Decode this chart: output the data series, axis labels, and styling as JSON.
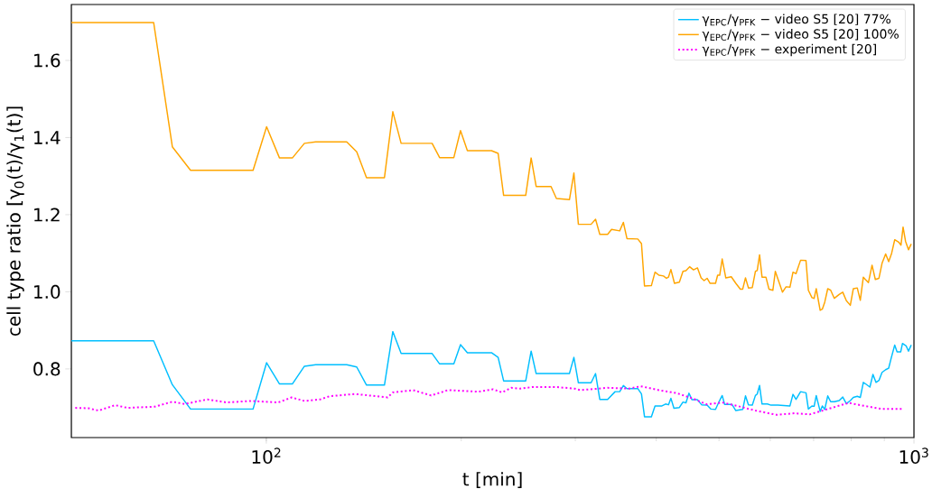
{
  "chart_data": {
    "type": "line",
    "xlabel": "t [min]",
    "ylabel": "cell type ratio [γ$_{0}$(t)/γ$_{1}$(t)]",
    "log": "x",
    "legend": "top right",
    "marker": "none",
    "xlim": [
      50,
      1000
    ],
    "ylim": [
      0.622,
      1.745
    ],
    "xticks": [
      {
        "value": 100,
        "label": "10$^{2}$"
      },
      {
        "value": 1000,
        "label": "10$^{3}$"
      }
    ],
    "yticks": [
      {
        "value": 0.8,
        "label": "0.8"
      },
      {
        "value": 1.0,
        "label": "1.0"
      },
      {
        "value": 1.2,
        "label": "1.2"
      },
      {
        "value": 1.4,
        "label": "1.4"
      },
      {
        "value": 1.6,
        "label": "1.6"
      }
    ],
    "series": [
      {
        "name": "γ$_{EPC}$/γ$_{PFK}$ − video S5 [20] 77%",
        "color": "#00bfff",
        "line_style": "solid",
        "x": [
          50,
          67.0,
          71.6,
          76.4,
          95.4,
          100.1,
          104.8,
          109.7,
          114.5,
          119.2,
          133.1,
          137.9,
          142.8,
          152.2,
          156.8,
          161.5,
          180.3,
          185.2,
          194.8,
          199.5,
          204.4,
          222.7,
          228.0,
          232.5,
          251.5,
          256.4,
          261.0,
          275.2,
          293.8,
          298.5,
          303.3,
          317.3,
          322.4,
          327.3,
          336.5,
          345.6,
          351.3,
          355.9,
          360.5,
          374.6,
          379.6,
          383.7,
          393.2,
          398.3,
          408.2,
          413.5,
          417.8,
          421.4,
          426.0,
          434.3,
          439.9,
          444.6,
          449.4,
          454.3,
          463.2,
          470.1,
          479.3,
          485.6,
          493.9,
          500.4,
          505.7,
          510.2,
          523.5,
          530.8,
          544.0,
          549.4,
          555.2,
          562.9,
          569.1,
          572.8,
          577.6,
          582.7,
          593.9,
          601.6,
          616.6,
          643.5,
          650.5,
          657.6,
          668.3,
          681.3,
          687.1,
          695.9,
          701.3,
          706.6,
          716.5,
          722.0,
          728.2,
          736.1,
          743.9,
          753.5,
          766.6,
          776.5,
          786.5,
          797.6,
          806.1,
          817.5,
          826.3,
          835.3,
          844.0,
          855.1,
          864.4,
          873.7,
          883.0,
          892.8,
          904.3,
          914.1,
          922.0,
          933.9,
          941.7,
          954.0,
          960.1,
          972.5,
          980.8,
          990.4
        ],
        "values": [
          0.873,
          0.873,
          0.759,
          0.696,
          0.696,
          0.816,
          0.761,
          0.761,
          0.807,
          0.811,
          0.811,
          0.805,
          0.758,
          0.758,
          0.897,
          0.84,
          0.84,
          0.813,
          0.813,
          0.863,
          0.842,
          0.842,
          0.83,
          0.769,
          0.769,
          0.846,
          0.788,
          0.788,
          0.788,
          0.83,
          0.764,
          0.764,
          0.788,
          0.721,
          0.721,
          0.741,
          0.741,
          0.757,
          0.749,
          0.749,
          0.735,
          0.676,
          0.676,
          0.704,
          0.704,
          0.709,
          0.707,
          0.724,
          0.698,
          0.7,
          0.714,
          0.712,
          0.737,
          0.72,
          0.72,
          0.707,
          0.706,
          0.696,
          0.695,
          0.716,
          0.731,
          0.708,
          0.708,
          0.692,
          0.695,
          0.73,
          0.707,
          0.706,
          0.731,
          0.735,
          0.757,
          0.709,
          0.709,
          0.706,
          0.706,
          0.704,
          0.734,
          0.721,
          0.741,
          0.738,
          0.696,
          0.704,
          0.703,
          0.731,
          0.69,
          0.704,
          0.695,
          0.73,
          0.715,
          0.715,
          0.718,
          0.727,
          0.71,
          0.718,
          0.726,
          0.729,
          0.726,
          0.765,
          0.76,
          0.753,
          0.786,
          0.765,
          0.77,
          0.791,
          0.798,
          0.802,
          0.827,
          0.862,
          0.844,
          0.844,
          0.866,
          0.86,
          0.846,
          0.862
        ]
      },
      {
        "name": "γ$_{EPC}$/γ$_{PFK}$ − video S5 [20] 100%",
        "color": "#ffa500",
        "line_style": "solid",
        "x": [
          50,
          67.0,
          71.6,
          76.4,
          95.4,
          100.1,
          104.8,
          109.7,
          114.5,
          119.2,
          133.1,
          137.9,
          142.8,
          152.2,
          156.8,
          161.5,
          180.3,
          185.2,
          194.8,
          199.5,
          204.4,
          222.7,
          228.0,
          232.5,
          251.5,
          256.4,
          261.0,
          275.2,
          280.5,
          293.8,
          298.5,
          303.3,
          317.3,
          322.4,
          327.3,
          336.5,
          341.3,
          351.3,
          355.9,
          360.5,
          374.6,
          379.6,
          383.7,
          393.2,
          398.3,
          403.8,
          410.4,
          414.8,
          417.8,
          421.4,
          426.8,
          434.3,
          439.9,
          444.6,
          450.4,
          456.7,
          463.2,
          469.2,
          474.2,
          479.3,
          484.5,
          493.9,
          497.6,
          501.3,
          505.7,
          512.3,
          522.3,
          530.8,
          539.4,
          544.0,
          549.4,
          555.2,
          562.9,
          569.1,
          572.8,
          577.6,
          582.7,
          590.8,
          597.2,
          605.6,
          610.9,
          616.6,
          626.6,
          634.7,
          643.5,
          650.5,
          657.6,
          668.3,
          681.3,
          687.1,
          695.9,
          701.3,
          706.6,
          716.5,
          722.0,
          728.2,
          736.1,
          743.9,
          753.5,
          766.6,
          776.5,
          786.5,
          797.6,
          806.1,
          817.5,
          826.3,
          835.3,
          841.4,
          850.6,
          861.6,
          871.7,
          883.0,
          892.8,
          904.3,
          914.1,
          923.8,
          933.9,
          947.0,
          955.0,
          962.1,
          970.5,
          980.8,
          990.4
        ],
        "values": [
          1.698,
          1.698,
          1.376,
          1.315,
          1.315,
          1.428,
          1.347,
          1.347,
          1.385,
          1.389,
          1.389,
          1.363,
          1.296,
          1.296,
          1.467,
          1.385,
          1.385,
          1.348,
          1.348,
          1.418,
          1.366,
          1.366,
          1.359,
          1.25,
          1.25,
          1.347,
          1.273,
          1.273,
          1.242,
          1.239,
          1.308,
          1.175,
          1.175,
          1.188,
          1.149,
          1.149,
          1.162,
          1.158,
          1.18,
          1.138,
          1.137,
          1.125,
          1.015,
          1.016,
          1.051,
          1.043,
          1.041,
          1.035,
          1.038,
          1.058,
          1.022,
          1.025,
          1.053,
          1.055,
          1.065,
          1.057,
          1.062,
          1.036,
          1.029,
          1.035,
          1.022,
          1.022,
          1.043,
          1.043,
          1.085,
          1.036,
          1.039,
          1.022,
          1.007,
          1.007,
          1.036,
          1.01,
          1.011,
          1.053,
          1.055,
          1.096,
          1.038,
          1.038,
          1.007,
          1.004,
          1.053,
          1.033,
          0.999,
          1.013,
          1.012,
          1.051,
          1.047,
          1.082,
          1.081,
          1.004,
          0.985,
          0.983,
          1.008,
          0.952,
          0.955,
          0.973,
          1.008,
          1.004,
          0.983,
          0.993,
          0.999,
          0.977,
          0.965,
          1.008,
          1.01,
          0.978,
          1.038,
          1.032,
          1.024,
          1.069,
          1.032,
          1.035,
          1.074,
          1.098,
          1.078,
          1.1,
          1.135,
          1.129,
          1.121,
          1.168,
          1.131,
          1.109,
          1.124
        ]
      },
      {
        "name": "γ$_{EPC}$/γ$_{PFK}$ − experiment [20]",
        "color": "#ff00ff",
        "line_style": "dotted",
        "x": [
          50.7,
          53.1,
          55.1,
          58.4,
          61.0,
          67.2,
          71.6,
          74.8,
          81.1,
          86.9,
          94.7,
          104.3,
          109.4,
          114.5,
          121.2,
          125.1,
          137.0,
          144.3,
          153.9,
          156.8,
          168.6,
          179.7,
          190.7,
          212.3,
          223.9,
          231.3,
          238.8,
          246.6,
          257.4,
          280.5,
          299.1,
          305.6,
          336.5,
          362.8,
          378.7,
          403.8,
          430.5,
          454.3,
          479.3,
          505.7,
          533.6,
          569.1,
          613.4,
          654.2,
          690.2,
          736.1,
          793.2,
          826.3,
          892.8,
          960.1
        ],
        "values": [
          0.699,
          0.698,
          0.692,
          0.706,
          0.699,
          0.702,
          0.715,
          0.709,
          0.721,
          0.713,
          0.717,
          0.713,
          0.726,
          0.717,
          0.721,
          0.729,
          0.735,
          0.731,
          0.726,
          0.739,
          0.745,
          0.731,
          0.745,
          0.741,
          0.747,
          0.739,
          0.751,
          0.749,
          0.753,
          0.753,
          0.749,
          0.745,
          0.751,
          0.749,
          0.755,
          0.745,
          0.737,
          0.724,
          0.708,
          0.713,
          0.704,
          0.692,
          0.681,
          0.685,
          0.682,
          0.696,
          0.712,
          0.706,
          0.696,
          0.696
        ]
      }
    ]
  }
}
